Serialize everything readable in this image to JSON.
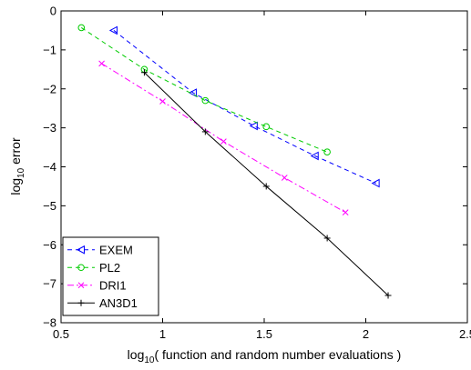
{
  "chart_data": {
    "type": "line",
    "title": "",
    "xlabel_main": "log",
    "xlabel_sub": "10",
    "xlabel_rest": "( function and random number evaluations )",
    "ylabel_main": "log",
    "ylabel_sub": "10",
    "ylabel_rest": " error",
    "xlim": [
      0.5,
      2.5
    ],
    "ylim": [
      -8,
      0
    ],
    "xticks": [
      0.5,
      1,
      1.5,
      2,
      2.5
    ],
    "xtick_labels": [
      "0.5",
      "1",
      "1.5",
      "2",
      "2.5"
    ],
    "yticks": [
      0,
      -1,
      -2,
      -3,
      -4,
      -5,
      -6,
      -7,
      -8
    ],
    "ytick_labels": [
      "0",
      "−1",
      "−2",
      "−3",
      "−4",
      "−5",
      "−6",
      "−7",
      "−8"
    ],
    "grid": false,
    "legend_position": "bottom-left",
    "series": [
      {
        "name": "EXEM",
        "color": "#0000ff",
        "line_style": "dashed",
        "marker": "triangle-left",
        "x": [
          0.76,
          1.15,
          1.45,
          1.75,
          2.05
        ],
        "y": [
          -0.5,
          -2.1,
          -2.95,
          -3.72,
          -4.42
        ]
      },
      {
        "name": "PL2",
        "color": "#00cc00",
        "line_style": "dashed",
        "marker": "circle",
        "x": [
          0.6,
          0.91,
          1.21,
          1.51,
          1.81
        ],
        "y": [
          -0.43,
          -1.5,
          -2.3,
          -2.97,
          -3.62
        ]
      },
      {
        "name": "DRI1",
        "color": "#ff00ff",
        "line_style": "dashdot",
        "marker": "x",
        "x": [
          0.7,
          1.0,
          1.3,
          1.6,
          1.9
        ],
        "y": [
          -1.35,
          -2.32,
          -3.35,
          -4.28,
          -5.17
        ]
      },
      {
        "name": "AN3D1",
        "color": "#000000",
        "line_style": "solid",
        "marker": "plus",
        "x": [
          0.91,
          1.21,
          1.51,
          1.81,
          2.11
        ],
        "y": [
          -1.58,
          -3.1,
          -4.5,
          -5.83,
          -7.3
        ]
      }
    ]
  }
}
